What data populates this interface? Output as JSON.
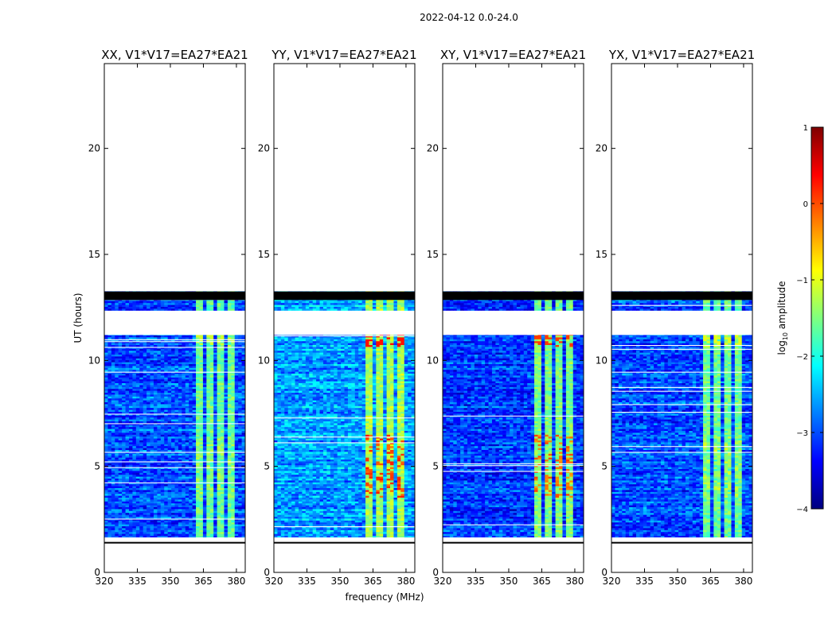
{
  "chart_data": {
    "type": "heatmap",
    "title": "2022-04-12 0.0-24.0",
    "xlabel": "frequency (MHz)",
    "ylabel": "UT (hours)",
    "xlim": [
      320,
      384
    ],
    "ylim": [
      0,
      24
    ],
    "xticks": [
      "320",
      "335",
      "350",
      "365",
      "380"
    ],
    "xtick_values": [
      320,
      335,
      350,
      365,
      380
    ],
    "yticks": [
      "0",
      "5",
      "10",
      "15",
      "20"
    ],
    "ytick_values": [
      0,
      5,
      10,
      15,
      20
    ],
    "colorbar": {
      "label_prefix": "log",
      "label_sub": "10",
      "label_suffix": " amplitude",
      "ticks": [
        "1",
        "0",
        "−1",
        "−2",
        "−3",
        "−4"
      ],
      "tick_values": [
        1,
        0,
        -1,
        -2,
        -3,
        -4
      ],
      "range": [
        -4,
        1
      ],
      "colormap": [
        "#00007f",
        "#0000ff",
        "#007fff",
        "#00ffff",
        "#7fff7f",
        "#ffff00",
        "#ff7f00",
        "#ff0000",
        "#7f0000"
      ]
    },
    "no_data_color": "#ffffff",
    "flagged_color": "#000000",
    "data_start_hour": 1.65,
    "data_end_hour": 13.25,
    "flagged_ranges_hours": [
      [
        12.85,
        13.25
      ]
    ],
    "gap_ranges_hours": [
      [
        1.4,
        1.65
      ],
      [
        12.0,
        12.3
      ],
      [
        11.2,
        12.0
      ]
    ],
    "rfi_bands_mhz": [
      [
        361,
        365
      ],
      [
        366.5,
        369.5
      ],
      [
        371.5,
        374.5
      ],
      [
        376,
        379
      ]
    ],
    "panels": [
      {
        "title": "XX, V1*V17=EA27*EA21",
        "background_level": -3.0,
        "band_level": -1.6,
        "peak_level": -1.1
      },
      {
        "title": "YY, V1*V17=EA27*EA21",
        "background_level": -2.6,
        "band_level": -1.3,
        "peak_level": 0.3
      },
      {
        "title": "XY, V1*V17=EA27*EA21",
        "background_level": -3.1,
        "band_level": -1.5,
        "peak_level": 0.1
      },
      {
        "title": "YX, V1*V17=EA27*EA21",
        "background_level": -3.0,
        "band_level": -1.6,
        "peak_level": -1.0
      }
    ]
  }
}
